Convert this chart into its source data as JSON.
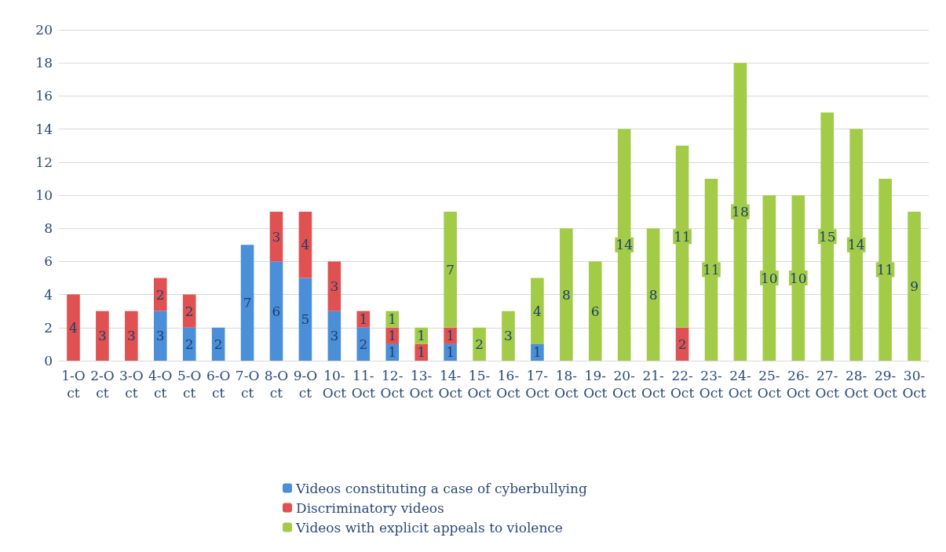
{
  "chart_data": {
    "type": "bar",
    "stacked": true,
    "data_labels": true,
    "grid": "y",
    "legend": "bottom",
    "categories": [
      "1-Oct",
      "2-Oct",
      "3-Oct",
      "4-Oct",
      "5-Oct",
      "6-Oct",
      "7-Oct",
      "8-Oct",
      "9-Oct",
      "10-Oct",
      "11-Oct",
      "12-Oct",
      "13-Oct",
      "14-Oct",
      "15-Oct",
      "16-Oct",
      "17-Oct",
      "18-Oct",
      "19-Oct",
      "20-Oct",
      "21-Oct",
      "22-Oct",
      "23-Oct",
      "24-Oct",
      "25-Oct",
      "26-Oct",
      "27-Oct",
      "28-Oct",
      "29-Oct",
      "30-Oct"
    ],
    "ylim": [
      0,
      20
    ],
    "yticks": [
      0,
      2,
      4,
      6,
      8,
      10,
      12,
      14,
      16,
      18,
      20
    ],
    "series": [
      {
        "name": "Videos constituting a case of cyberbullying",
        "color": "#4a8fd8",
        "values": [
          null,
          null,
          null,
          3,
          2,
          2,
          7,
          6,
          5,
          3,
          2,
          1,
          null,
          1,
          null,
          null,
          1,
          null,
          null,
          null,
          null,
          null,
          null,
          null,
          null,
          null,
          null,
          null,
          null,
          null
        ]
      },
      {
        "name": "Discriminatory videos",
        "color": "#e05252",
        "values": [
          4,
          3,
          3,
          2,
          2,
          null,
          null,
          3,
          4,
          3,
          1,
          1,
          1,
          1,
          null,
          null,
          null,
          null,
          null,
          null,
          null,
          2,
          null,
          null,
          null,
          null,
          null,
          null,
          null,
          null
        ]
      },
      {
        "name": "Videos with explicit appeals to violence",
        "color": "#a2cc48",
        "values": [
          null,
          null,
          null,
          null,
          null,
          null,
          null,
          null,
          null,
          null,
          null,
          1,
          1,
          7,
          2,
          3,
          4,
          8,
          6,
          14,
          8,
          11,
          11,
          18,
          10,
          10,
          15,
          14,
          11,
          9
        ]
      }
    ]
  }
}
